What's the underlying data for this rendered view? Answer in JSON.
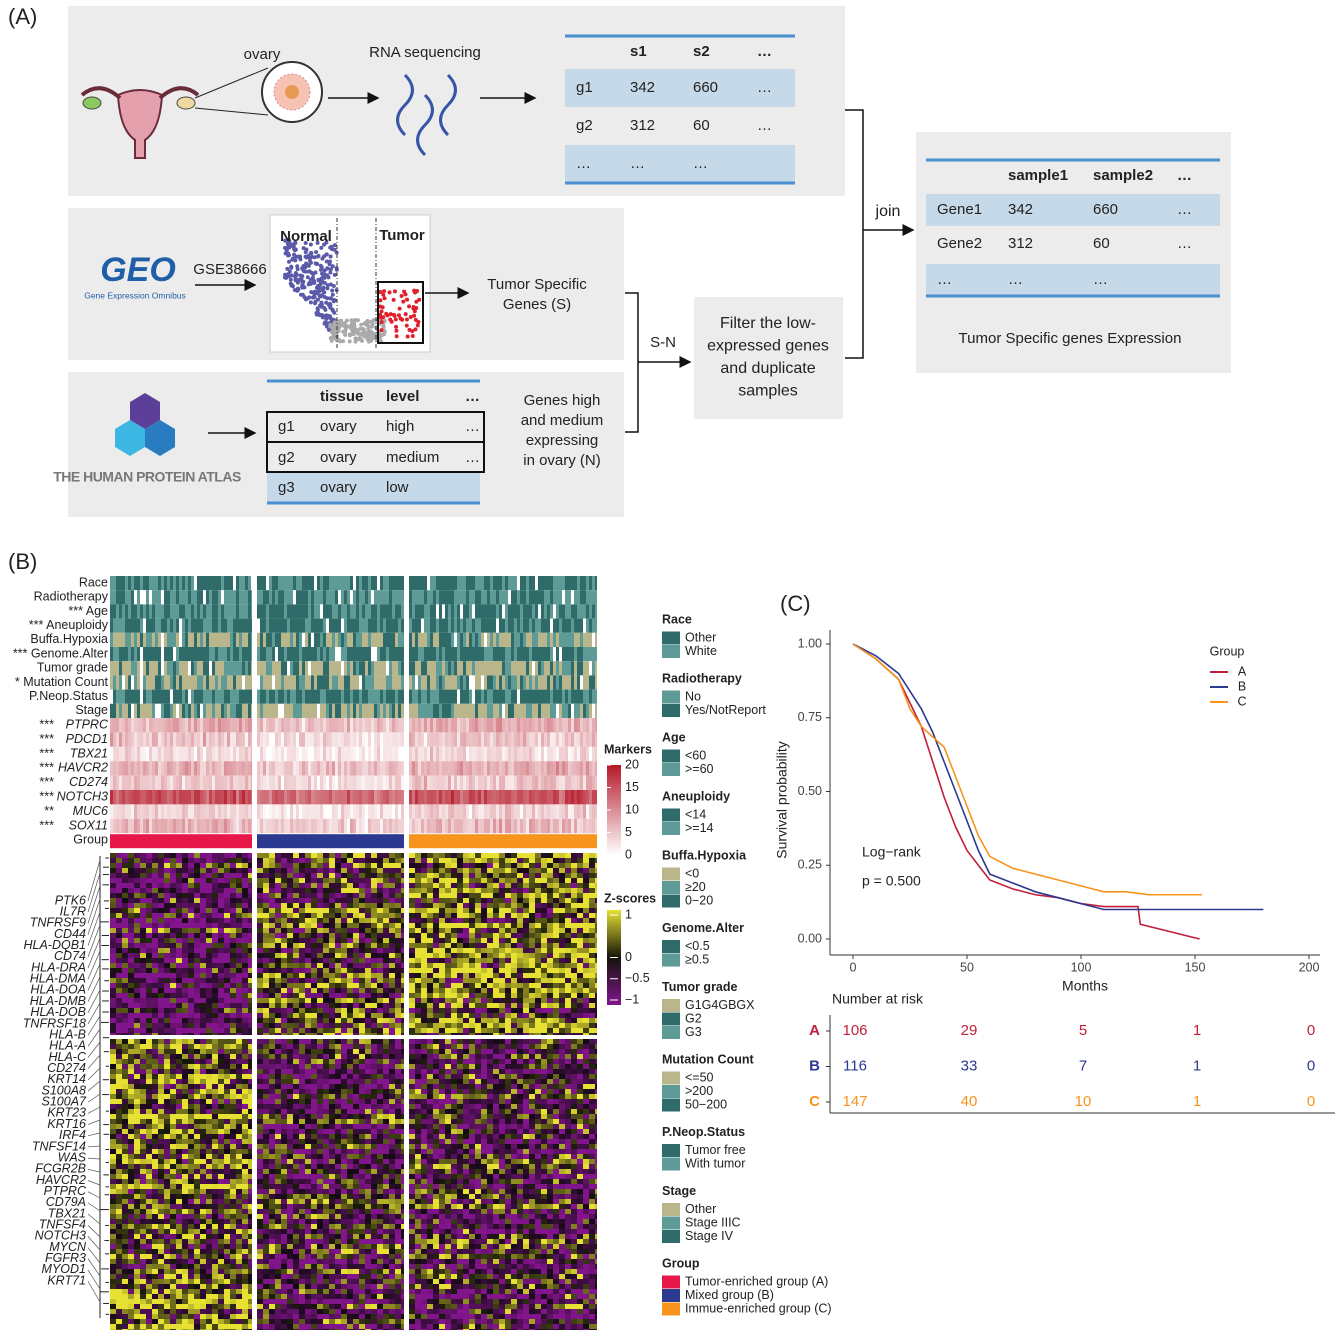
{
  "panel_a": {
    "label": "(A)",
    "ovary": "ovary",
    "rna_seq": "RNA sequencing",
    "rna_table": {
      "header": [
        "s1",
        "s2",
        "…"
      ],
      "rows": [
        [
          "g1",
          342,
          660,
          "…"
        ],
        [
          "g2",
          312,
          60,
          "…"
        ],
        [
          "…",
          "…",
          "…"
        ]
      ]
    },
    "geo": {
      "logo": "GEO",
      "subtitle": "Gene Expression Omnibus",
      "accession": "GSE38666"
    },
    "volcano": {
      "normal": "Normal",
      "tumor": "Tumor"
    },
    "tumor_genes": [
      "Tumor Specific",
      "Genes (S)"
    ],
    "hpa": {
      "logo": "THE HUMAN PROTEIN ATLAS"
    },
    "hpa_table": {
      "header": [
        "tissue",
        "level",
        "…"
      ],
      "rows": [
        [
          "g1",
          "ovary",
          "high",
          "…"
        ],
        [
          "g2",
          "ovary",
          "medium",
          "…"
        ],
        [
          "g3",
          "ovary",
          "low"
        ]
      ]
    },
    "hpa_genes": [
      "Genes high",
      "and medium",
      "expressing",
      "in ovary (N)"
    ],
    "sn": "S-N",
    "filter": [
      "Filter the low-",
      "expressed genes",
      "and duplicate",
      "samples"
    ],
    "join": "join",
    "result_table": {
      "header": [
        "sample1",
        "sample2",
        "…"
      ],
      "rows": [
        [
          "Gene1",
          342,
          660,
          "…"
        ],
        [
          "Gene2",
          312,
          60,
          "…"
        ],
        [
          "…",
          "…",
          "…"
        ]
      ]
    },
    "result_caption": "Tumor Specific genes Expression"
  },
  "panel_b": {
    "label": "(B)",
    "annotations": [
      "Race",
      "Radiotherapy",
      "*** Age",
      "*** Aneuploidy",
      "Buffa.Hypoxia",
      "*** Genome.Alter",
      "Tumor grade",
      "* Mutation Count",
      "P.Neop.Status",
      "Stage"
    ],
    "markers": [
      {
        "stars": "***",
        "gene": "PTPRC"
      },
      {
        "stars": "***",
        "gene": "PDCD1"
      },
      {
        "stars": "***",
        "gene": "TBX21"
      },
      {
        "stars": "***",
        "gene": "HAVCR2"
      },
      {
        "stars": "***",
        "gene": "CD274"
      },
      {
        "stars": "***",
        "gene": "NOTCH3"
      },
      {
        "stars": "**",
        "gene": "MUC6"
      },
      {
        "stars": "***",
        "gene": "SOX11"
      }
    ],
    "group_label": "Group",
    "genes": [
      "PTK6",
      "IL7R",
      "TNFRSF9",
      "CD44",
      "HLA-DQB1",
      "CD74",
      "HLA-DRA",
      "HLA-DMA",
      "HLA-DOA",
      "HLA-DMB",
      "HLA-DOB",
      "TNFRSF18",
      "HLA-B",
      "HLA-A",
      "HLA-C",
      "CD274",
      "KRT14",
      "S100A8",
      "S100A7",
      "KRT23",
      "KRT16",
      "IRF4",
      "TNFSF14",
      "WAS",
      "FCGR2B",
      "HAVCR2",
      "PTPRC",
      "CD79A",
      "TBX21",
      "TNFSF4",
      "NOTCH3",
      "MYCN",
      "FGFR3",
      "MYOD1",
      "KRT71"
    ],
    "markers_legend": {
      "title": "Markers",
      "ticks": [
        0,
        5,
        10,
        15,
        20
      ]
    },
    "zscore_legend": {
      "title": "Z-scores",
      "ticks": [
        1,
        0,
        {
          "value": -0.5,
          "label": "−0.5"
        },
        {
          "value": -1,
          "label": "−1"
        }
      ]
    },
    "legends": [
      {
        "title": "Race",
        "items": [
          {
            "label": "Other",
            "color": "#2f6b68"
          },
          {
            "label": "White",
            "color": "#5e9b96"
          }
        ]
      },
      {
        "title": "Radiotherapy",
        "items": [
          {
            "label": "No",
            "color": "#5e9b96"
          },
          {
            "label": "Yes/NotReport",
            "color": "#2f6b68"
          }
        ]
      },
      {
        "title": "Age",
        "items": [
          {
            "label": "<60",
            "color": "#2f6b68"
          },
          {
            "label": ">=60",
            "color": "#5e9b96"
          }
        ]
      },
      {
        "title": "Aneuploidy",
        "items": [
          {
            "label": "<14",
            "color": "#2f6b68"
          },
          {
            "label": ">=14",
            "color": "#5e9b96"
          }
        ]
      },
      {
        "title": "Buffa.Hypoxia",
        "items": [
          {
            "label": "<0",
            "color": "#b8b68a"
          },
          {
            "label": "≥20",
            "color": "#5e9b96"
          },
          {
            "label": "0−20",
            "color": "#2f6b68"
          }
        ]
      },
      {
        "title": "Genome.Alter",
        "items": [
          {
            "label": "<0.5",
            "color": "#2f6b68"
          },
          {
            "label": "≥0.5",
            "color": "#5e9b96"
          }
        ]
      },
      {
        "title": "Tumor grade",
        "items": [
          {
            "label": "G1G4GBGX",
            "color": "#b8b68a"
          },
          {
            "label": "G2",
            "color": "#2f6b68"
          },
          {
            "label": "G3",
            "color": "#5e9b96"
          }
        ]
      },
      {
        "title": "Mutation Count",
        "items": [
          {
            "label": "<=50",
            "color": "#b8b68a"
          },
          {
            "label": ">200",
            "color": "#5e9b96"
          },
          {
            "label": "50−200",
            "color": "#2f6b68"
          }
        ]
      },
      {
        "title": "P.Neop.Status",
        "items": [
          {
            "label": "Tumor free",
            "color": "#2f6b68"
          },
          {
            "label": "With tumor",
            "color": "#5e9b96"
          }
        ]
      },
      {
        "title": "Stage",
        "items": [
          {
            "label": "Other",
            "color": "#b8b68a"
          },
          {
            "label": "Stage IIIC",
            "color": "#5e9b96"
          },
          {
            "label": "Stage IV",
            "color": "#2f6b68"
          }
        ]
      },
      {
        "title": "Group",
        "items": [
          {
            "label": "Tumor-enriched group (A)",
            "color": "#e8174a"
          },
          {
            "label": "Mixed group (B)",
            "color": "#2b3990"
          },
          {
            "label": "Immue-enriched group (C)",
            "color": "#f7941d"
          }
        ]
      }
    ]
  },
  "chart_data": {
    "type": "line",
    "label": "(C)",
    "xlabel": "Months",
    "ylabel": "Survival probability",
    "xlim": [
      0,
      200
    ],
    "xticks": [
      0,
      50,
      100,
      150,
      200
    ],
    "ylim": [
      0,
      1
    ],
    "yticks": [
      {
        "value": 0,
        "label": "0.00"
      },
      {
        "value": 0.25,
        "label": "0.25"
      },
      {
        "value": 0.5,
        "label": "0.50"
      },
      {
        "value": 0.75,
        "label": "0.75"
      },
      {
        "value": 1,
        "label": "1.00"
      }
    ],
    "legend_title": "Group",
    "legend": "top-right",
    "series": [
      {
        "name": "A",
        "color": "#c0203a",
        "x": [
          0,
          10,
          20,
          25,
          30,
          35,
          40,
          45,
          50,
          55,
          60,
          70,
          80,
          90,
          100,
          110,
          125,
          126,
          152
        ],
        "values": [
          1,
          0.95,
          0.88,
          0.8,
          0.72,
          0.6,
          0.48,
          0.38,
          0.3,
          0.25,
          0.2,
          0.17,
          0.15,
          0.14,
          0.12,
          0.11,
          0.11,
          0.05,
          0
        ]
      },
      {
        "name": "B",
        "color": "#2b3990",
        "x": [
          0,
          10,
          20,
          30,
          35,
          40,
          45,
          50,
          55,
          60,
          70,
          80,
          90,
          100,
          110,
          130,
          180
        ],
        "values": [
          1,
          0.96,
          0.9,
          0.78,
          0.7,
          0.6,
          0.5,
          0.4,
          0.3,
          0.22,
          0.19,
          0.16,
          0.14,
          0.12,
          0.1,
          0.1,
          0.1
        ]
      },
      {
        "name": "C",
        "color": "#f7941d",
        "x": [
          0,
          10,
          20,
          25,
          30,
          40,
          45,
          50,
          55,
          60,
          70,
          80,
          90,
          100,
          110,
          120,
          130,
          153
        ],
        "values": [
          1,
          0.95,
          0.88,
          0.78,
          0.72,
          0.65,
          0.55,
          0.45,
          0.35,
          0.28,
          0.24,
          0.22,
          0.2,
          0.18,
          0.16,
          0.16,
          0.15,
          0.15
        ]
      }
    ],
    "annotations": [
      "Log−rank",
      "p = 0.500"
    ],
    "risk_table": {
      "title": "Number at risk",
      "values": [
        [
          106,
          29,
          5,
          1,
          0
        ],
        [
          116,
          33,
          7,
          1,
          0
        ],
        [
          147,
          40,
          10,
          1,
          0
        ]
      ]
    }
  }
}
